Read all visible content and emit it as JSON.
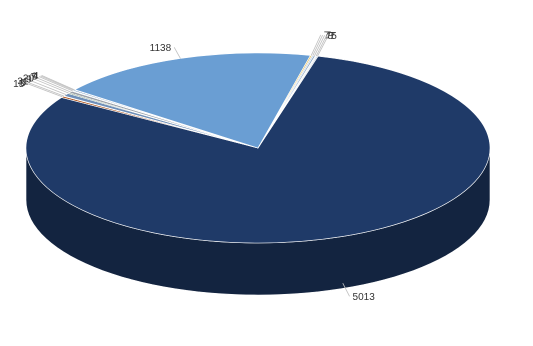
{
  "chart_data": {
    "type": "pie",
    "style": "3d-exploded-none",
    "title": "",
    "slices": [
      {
        "label": "5013",
        "value": 5013,
        "color": "#1f3a68"
      },
      {
        "label": "15",
        "value": 15,
        "color": "#a84a12"
      },
      {
        "label": "5",
        "value": 5,
        "color": "#1f2f55"
      },
      {
        "label": "31",
        "value": 31,
        "color": "#6f8fb8"
      },
      {
        "label": "9",
        "value": 9,
        "color": "#2a5a2a"
      },
      {
        "label": "20",
        "value": 20,
        "color": "#9aa0a8"
      },
      {
        "label": "7",
        "value": 7,
        "color": "#d4d8de"
      },
      {
        "label": "9",
        "value": 9,
        "color": "#4f7fb3"
      },
      {
        "label": "4",
        "value": 4,
        "color": "#e07b39"
      },
      {
        "label": "1138",
        "value": 1138,
        "color": "#6a9ed3"
      },
      {
        "label": "7",
        "value": 7,
        "color": "#e8c25a"
      },
      {
        "label": "7",
        "value": 7,
        "color": "#c9d4e0"
      },
      {
        "label": "8",
        "value": 8,
        "color": "#8aa8c8"
      },
      {
        "label": "7",
        "value": 7,
        "color": "#f2f2f2"
      },
      {
        "label": "5",
        "value": 5,
        "color": "#b7c7d9"
      }
    ]
  }
}
